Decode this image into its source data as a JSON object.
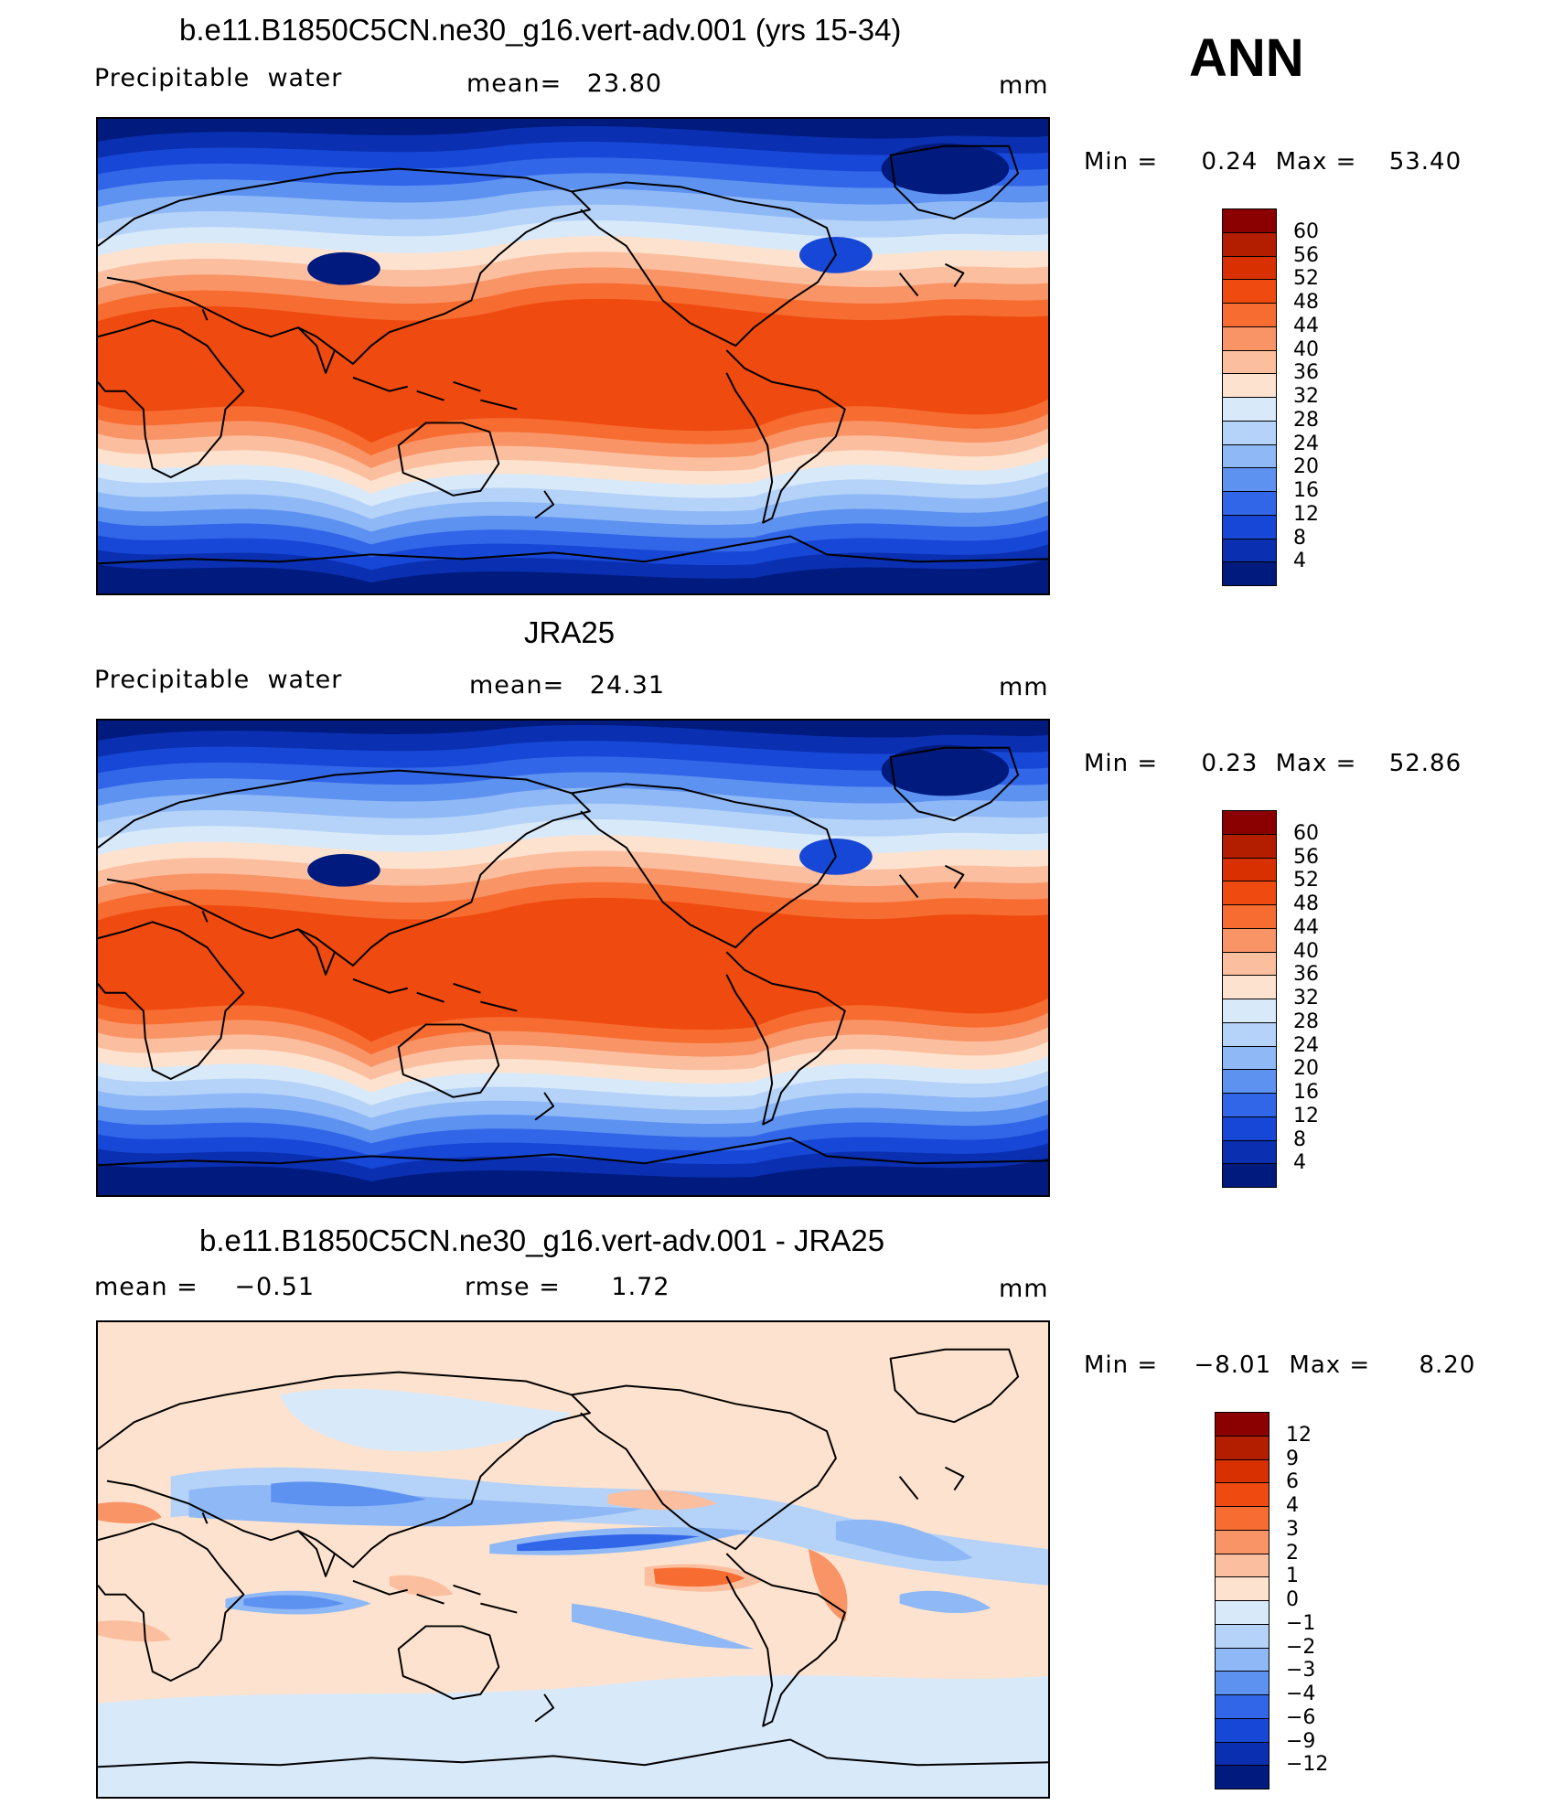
{
  "season": "ANN",
  "panels": [
    {
      "title": "b.e11.B1850C5CN.ne30_g16.vert-adv.001 (yrs 15-34)",
      "variable": "Precipitable  water",
      "stat_label": "mean=",
      "stat_value": "23.80",
      "units": "mm",
      "min_label": "Min =",
      "min_value": "0.24",
      "max_label": "Max =",
      "max_value": "53.40",
      "colorbar_levels": [
        "60",
        "56",
        "52",
        "48",
        "44",
        "40",
        "36",
        "32",
        "28",
        "24",
        "20",
        "16",
        "12",
        "8",
        "4"
      ],
      "colorbar_colors": [
        "#8b0000",
        "#b31d00",
        "#d83000",
        "#ef4a10",
        "#f76c30",
        "#f99466",
        "#fbbfa0",
        "#fde3cf",
        "#d8e9fa",
        "#b5d2f8",
        "#8fb8f6",
        "#5e92f0",
        "#3266e8",
        "#1747d6",
        "#0a2fb0",
        "#001a7d"
      ],
      "map": {
        "bands": "model",
        "colors": [
          "#001a7d",
          "#0a2fb0",
          "#1747d6",
          "#3266e8",
          "#5e92f0",
          "#8fb8f6",
          "#b5d2f8",
          "#d8e9fa",
          "#fde3cf",
          "#fbbfa0",
          "#f99466",
          "#f76c30",
          "#ef4a10"
        ]
      }
    },
    {
      "title": "JRA25",
      "variable": "Precipitable  water",
      "stat_label": "mean=",
      "stat_value": "24.31",
      "units": "mm",
      "min_label": "Min =",
      "min_value": "0.23",
      "max_label": "Max =",
      "max_value": "52.86",
      "colorbar_levels": [
        "60",
        "56",
        "52",
        "48",
        "44",
        "40",
        "36",
        "32",
        "28",
        "24",
        "20",
        "16",
        "12",
        "8",
        "4"
      ],
      "colorbar_colors": [
        "#8b0000",
        "#b31d00",
        "#d83000",
        "#ef4a10",
        "#f76c30",
        "#f99466",
        "#fbbfa0",
        "#fde3cf",
        "#d8e9fa",
        "#b5d2f8",
        "#8fb8f6",
        "#5e92f0",
        "#3266e8",
        "#1747d6",
        "#0a2fb0",
        "#001a7d"
      ],
      "map": {
        "bands": "obs",
        "colors": [
          "#001a7d",
          "#0a2fb0",
          "#1747d6",
          "#3266e8",
          "#5e92f0",
          "#8fb8f6",
          "#b5d2f8",
          "#d8e9fa",
          "#fde3cf",
          "#fbbfa0",
          "#f99466",
          "#f76c30",
          "#ef4a10"
        ]
      }
    },
    {
      "title": "b.e11.B1850C5CN.ne30_g16.vert-adv.001 - JRA25",
      "stat_label": "mean =",
      "stat_value": "−0.51",
      "stat2_label": "rmse =",
      "stat2_value": "1.72",
      "units": "mm",
      "min_label": "Min =",
      "min_value": "−8.01",
      "max_label": "Max =",
      "max_value": "8.20",
      "colorbar_levels": [
        "12",
        "9",
        "6",
        "4",
        "3",
        "2",
        "1",
        "0",
        "−1",
        "−2",
        "−3",
        "−4",
        "−6",
        "−9",
        "−12"
      ],
      "colorbar_colors": [
        "#8b0000",
        "#b31d00",
        "#d83000",
        "#ef4a10",
        "#f76c30",
        "#f99466",
        "#fbbfa0",
        "#fde3cf",
        "#d8e9fa",
        "#b5d2f8",
        "#8fb8f6",
        "#5e92f0",
        "#3266e8",
        "#1747d6",
        "#0a2fb0",
        "#001a7d"
      ],
      "map": {
        "bands": "diff",
        "colors": [
          "#fde3cf",
          "#d8e9fa",
          "#b5d2f8",
          "#8fb8f6",
          "#5e92f0",
          "#3266e8",
          "#fbbfa0",
          "#f99466",
          "#f76c30"
        ]
      }
    }
  ]
}
